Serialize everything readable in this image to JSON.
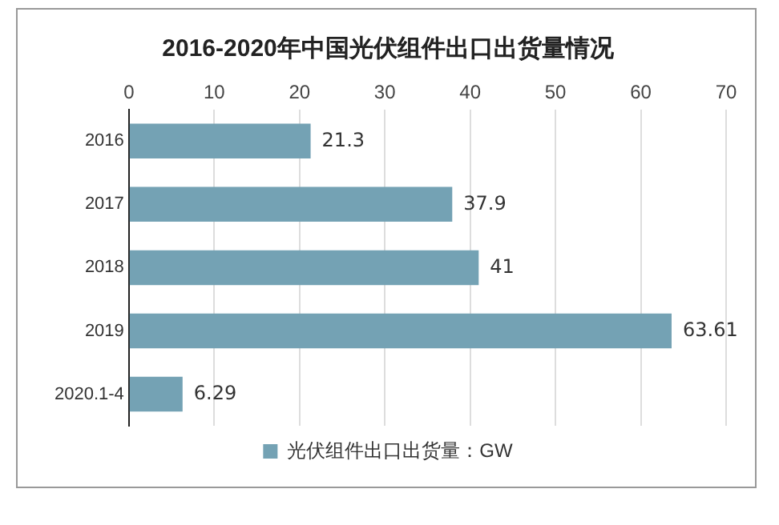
{
  "chart_data": {
    "type": "bar",
    "orientation": "horizontal",
    "title": "2016-2020年中国光伏组件出口出货量情况",
    "categories": [
      "2016",
      "2017",
      "2018",
      "2019",
      "2020.1-4"
    ],
    "series": [
      {
        "name": "光伏组件出口出货量：GW",
        "color": "#74a2b4",
        "values": [
          21.3,
          37.9,
          41,
          63.61,
          6.29
        ]
      }
    ],
    "xlim": [
      0,
      70
    ],
    "xticks": [
      0,
      10,
      20,
      30,
      40,
      50,
      60,
      70
    ],
    "grid": "x",
    "legend": "bottom",
    "data_labels": true
  }
}
